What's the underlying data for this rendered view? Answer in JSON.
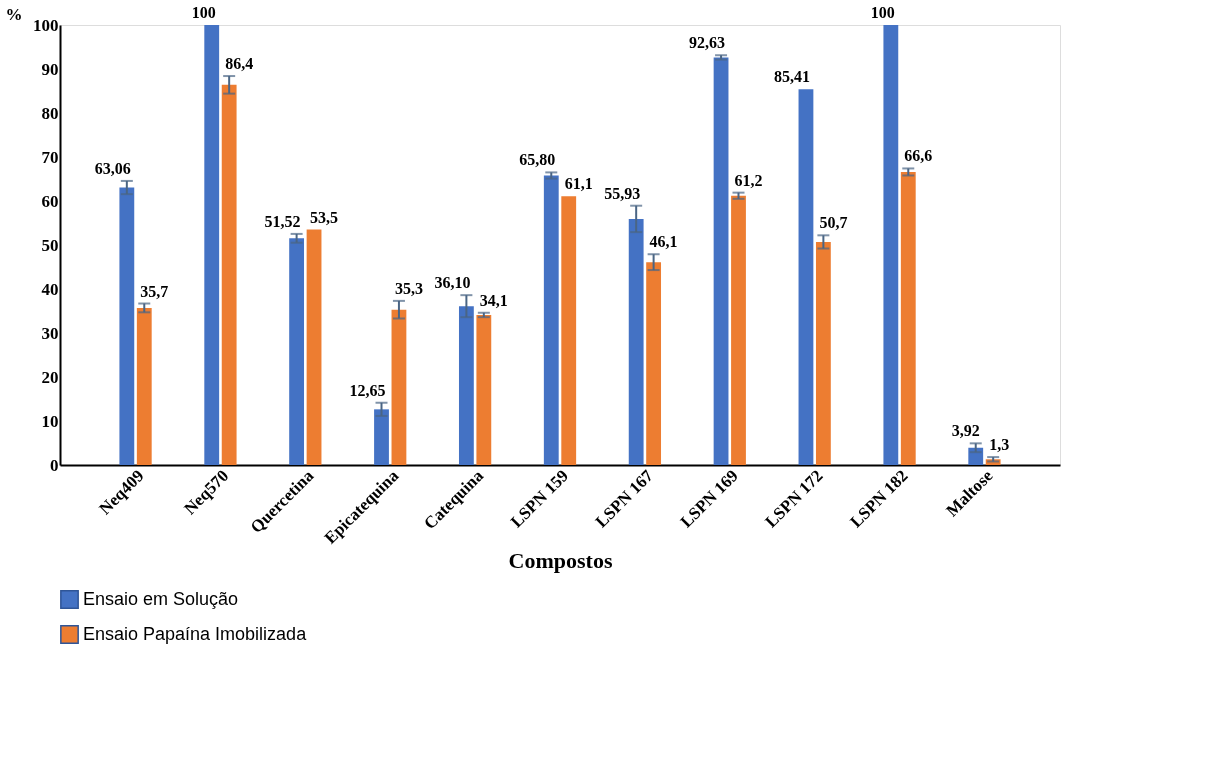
{
  "chart_data": {
    "type": "bar",
    "xlabel": "Compostos",
    "ylabel": "%",
    "categories": [
      "Neq409",
      "Neq570",
      "Quercetina",
      "Epicatequina",
      "Catequina",
      "LSPN 159",
      "LSPN 167",
      "LSPN 169",
      "LSPN 172",
      "LSPN 182",
      "Maltose"
    ],
    "series": [
      {
        "name": "Ensaio em Solução",
        "color": "#4472c4",
        "values": [
          63.06,
          100,
          51.52,
          12.65,
          36.1,
          65.8,
          55.93,
          92.63,
          85.41,
          100,
          3.92
        ],
        "value_labels": [
          "63,06",
          "100",
          "51,52",
          "12,65",
          "36,10",
          "65,80",
          "55,93",
          "92,63",
          "85,41",
          "100",
          "3,92"
        ],
        "errors": [
          1.5,
          null,
          1,
          1.5,
          2.5,
          0.7,
          3,
          0.5,
          null,
          null,
          1
        ]
      },
      {
        "name": "Ensaio Papaína Imobilizada",
        "color": "#ed7d31",
        "values": [
          35.7,
          86.4,
          53.5,
          35.3,
          34.1,
          61.1,
          46.1,
          61.2,
          50.7,
          66.6,
          1.3
        ],
        "value_labels": [
          "35,7",
          "86,4",
          "53,5",
          "35,3",
          "34,1",
          "61,1",
          "46,1",
          "61,2",
          "50,7",
          "66,6",
          "1,3"
        ],
        "errors": [
          1,
          2,
          null,
          2,
          0.5,
          null,
          1.8,
          0.7,
          1.5,
          0.8,
          0.5
        ]
      }
    ],
    "ylim": [
      0,
      100
    ],
    "yticks": [
      0,
      10,
      20,
      30,
      40,
      50,
      60,
      70,
      80,
      90,
      100
    ],
    "grid": false,
    "legend": "bottom"
  }
}
